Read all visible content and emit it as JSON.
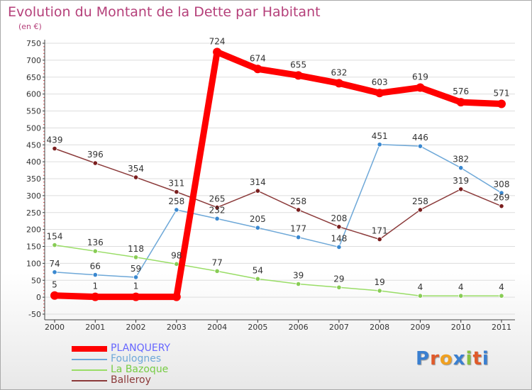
{
  "title": "Evolution du Montant de la Dette par Habitant",
  "subtitle": "(en €)",
  "logo": "Proxiti",
  "colors": {
    "title": "#b5407a",
    "axis": "#444444",
    "grid": "#dddddd"
  },
  "chart_data": {
    "type": "line",
    "title": "Evolution du Montant de la Dette par Habitant",
    "ylabel": "(en €)",
    "xlabel": "",
    "ylim": [
      -50,
      750
    ],
    "ytick_step": 50,
    "grid": true,
    "legend_position": "bottom-left",
    "categories": [
      "2000",
      "2001",
      "2002",
      "2003",
      "2004",
      "2005",
      "2006",
      "2007",
      "2008",
      "2009",
      "2010",
      "2011"
    ],
    "series": [
      {
        "name": "PLANQUERY",
        "color": "#ff0000",
        "legend_text_color": "#6666ff",
        "values": [
          5,
          1,
          1,
          1,
          724,
          674,
          655,
          632,
          603,
          619,
          576,
          571
        ],
        "labels": [
          "5",
          "1",
          "1",
          "",
          "724",
          "674",
          "655",
          "632",
          "603",
          "619",
          "576",
          "571"
        ],
        "bold": true
      },
      {
        "name": "Foulognes",
        "color": "#6ea8d8",
        "point_color": "#3a88d0",
        "legend_text_color": "#6ea8d8",
        "values": [
          74,
          66,
          59,
          258,
          232,
          205,
          177,
          148,
          451,
          446,
          382,
          308
        ],
        "labels": [
          "74",
          "66",
          "59",
          "258",
          "232",
          "205",
          "177",
          "148",
          "451",
          "446",
          "382",
          "308"
        ]
      },
      {
        "name": "La Bazoque",
        "color": "#99dd66",
        "point_color": "#88cc55",
        "legend_text_color": "#77cc44",
        "values": [
          154,
          136,
          118,
          98,
          77,
          54,
          39,
          29,
          19,
          4,
          4,
          4
        ],
        "labels": [
          "154",
          "136",
          "118",
          "98",
          "77",
          "54",
          "39",
          "29",
          "19",
          "4",
          "4",
          "4"
        ]
      },
      {
        "name": "Balleroy",
        "color": "#8b3a3a",
        "point_color": "#7a1e1e",
        "legend_text_color": "#8b3a3a",
        "values": [
          439,
          396,
          354,
          311,
          265,
          314,
          258,
          208,
          171,
          258,
          319,
          269
        ],
        "labels": [
          "439",
          "396",
          "354",
          "311",
          "265",
          "314",
          "258",
          "208",
          "171",
          "258",
          "319",
          "269"
        ]
      }
    ]
  }
}
